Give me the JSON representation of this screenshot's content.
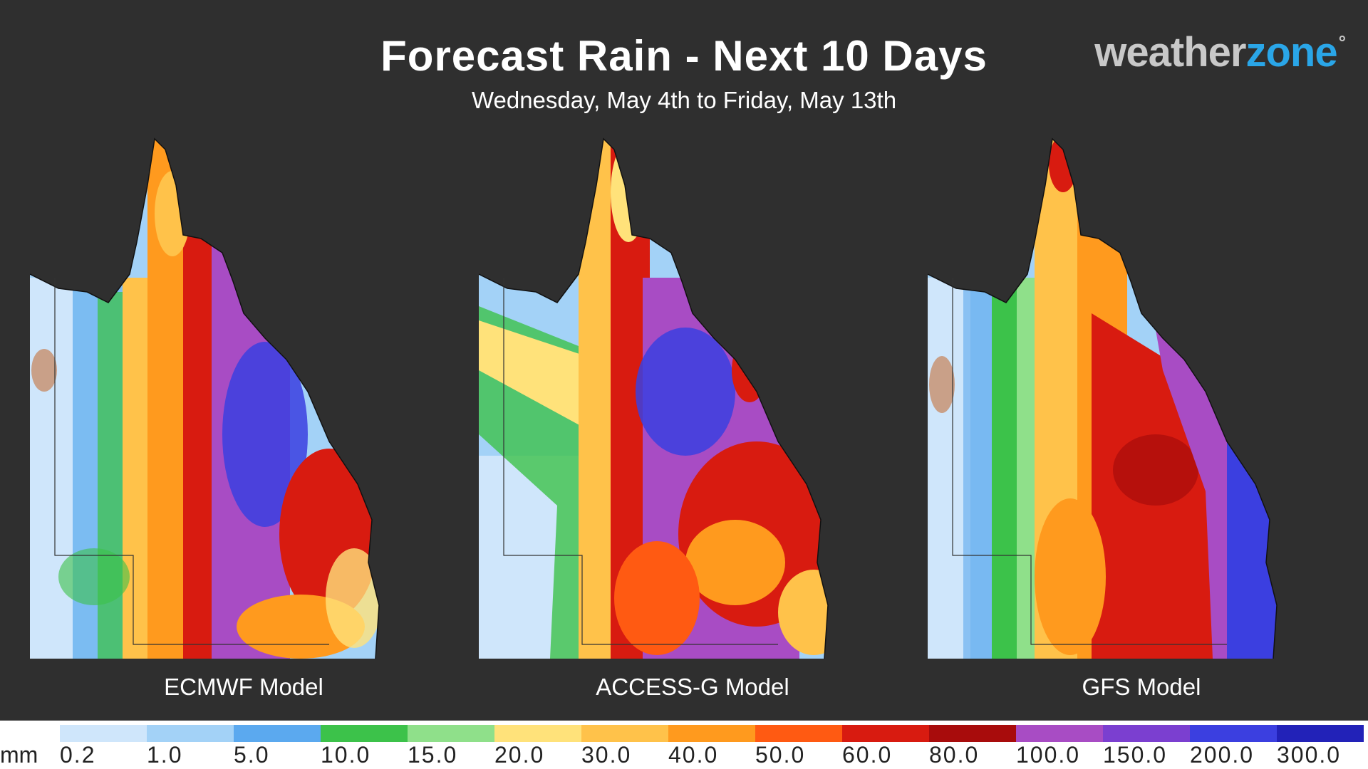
{
  "header": {
    "title": "Forecast Rain - Next 10 Days",
    "subtitle": "Wednesday, May 4th to Friday, May 13th"
  },
  "logo": {
    "part1": "weather",
    "part2": "zone",
    "mark": "°"
  },
  "panels": [
    {
      "label": "ECMWF Model"
    },
    {
      "label": "ACCESS-G Model"
    },
    {
      "label": "GFS Model"
    }
  ],
  "legend": {
    "unit": "mm",
    "ticks": [
      "0.2",
      "1.0",
      "5.0",
      "10.0",
      "15.0",
      "20.0",
      "30.0",
      "40.0",
      "50.0",
      "60.0",
      "80.0",
      "100.0",
      "150.0",
      "200.0",
      "300.0"
    ],
    "colors": [
      "#cfe6fb",
      "#a3d2f7",
      "#5ba9ef",
      "#3cc24a",
      "#8fe08a",
      "#ffe27a",
      "#ffc24a",
      "#ff9a1e",
      "#ff5a12",
      "#d81b10",
      "#a80c0c",
      "#a84cc4",
      "#7b3fd0",
      "#3b3fe0",
      "#2222b8"
    ]
  },
  "colors": {
    "background": "#2f2f2f",
    "logo_accent": "#2aa6e8"
  }
}
